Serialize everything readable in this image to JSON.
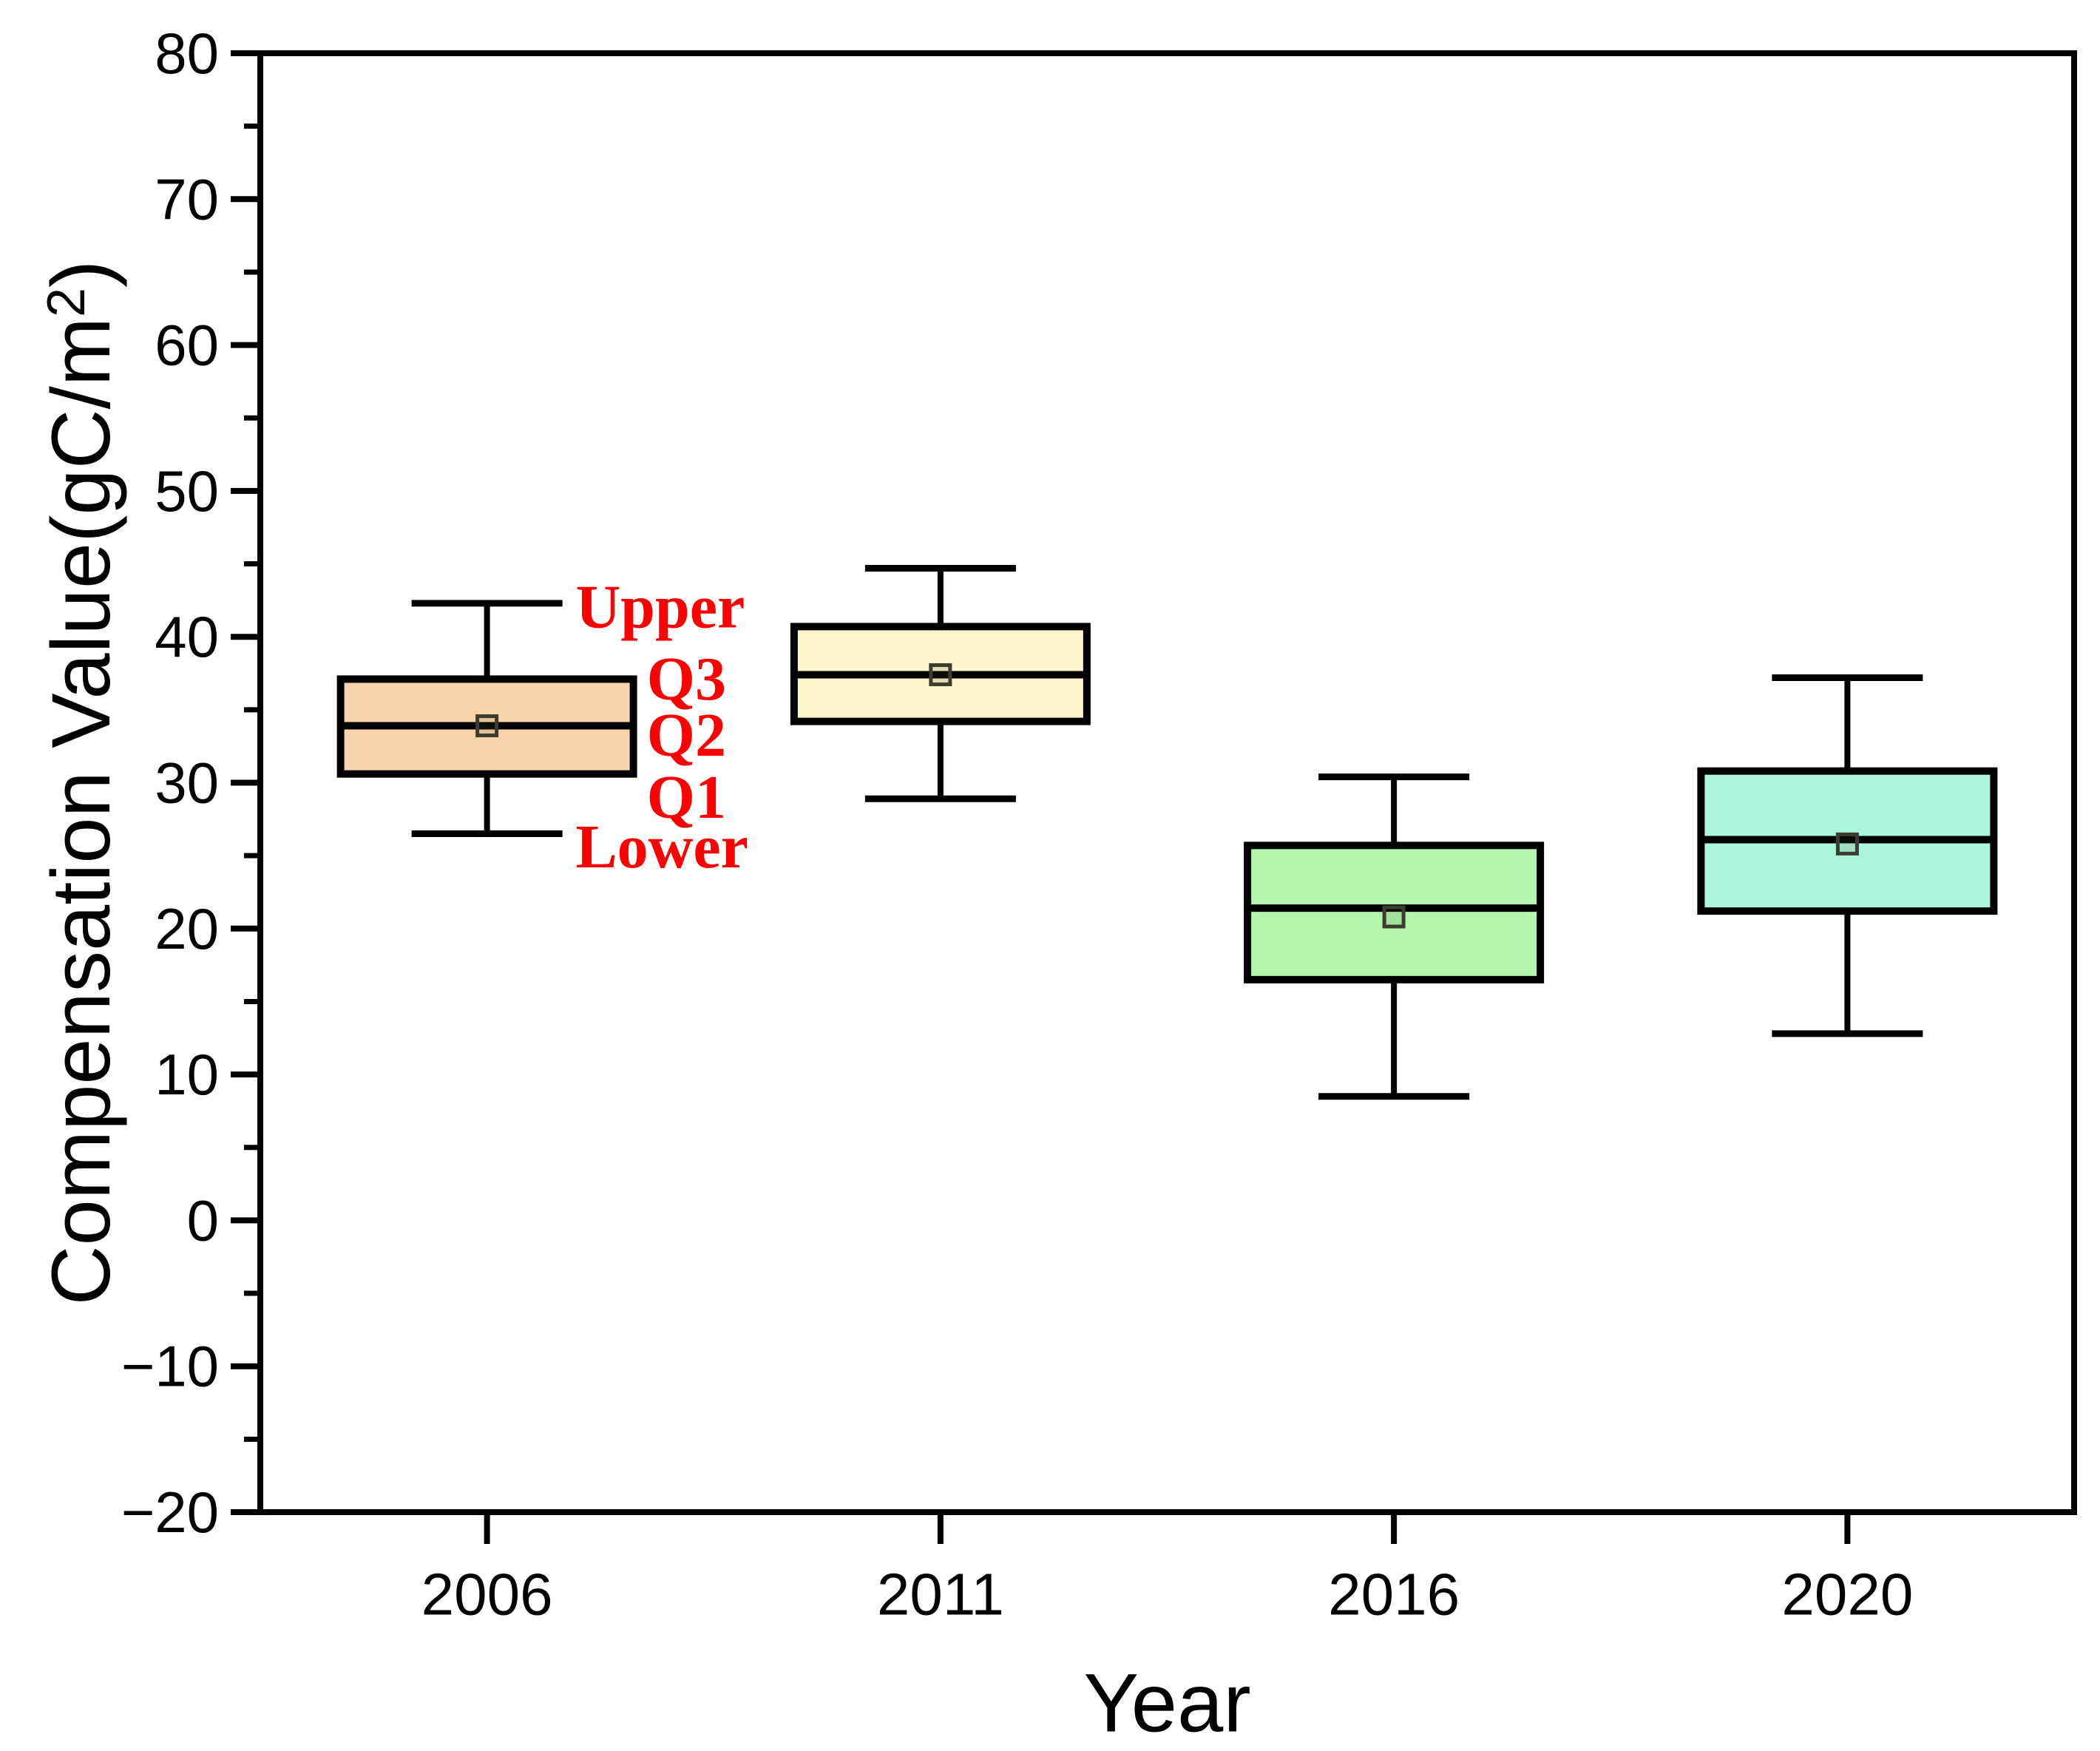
{
  "figure": {
    "background": "#ffffff",
    "frame_color": "#000000"
  },
  "chart_data": {
    "type": "box",
    "title": "",
    "xlabel": "Year",
    "ylabel": "Compensation Value(gC/m²)",
    "ylabel_parts": {
      "pre": "Compensation Value(gC/m",
      "sup": "2",
      "post": ")"
    },
    "categories": [
      "2006",
      "2011",
      "2016",
      "2020"
    ],
    "ylim": [
      -20,
      80
    ],
    "grid": "off",
    "legend": "none",
    "y_major_ticks": [
      {
        "v": 80,
        "label": "80"
      },
      {
        "v": 70,
        "label": "70"
      },
      {
        "v": 60,
        "label": "60"
      },
      {
        "v": 50,
        "label": "50"
      },
      {
        "v": 40,
        "label": "40"
      },
      {
        "v": 30,
        "label": "30"
      },
      {
        "v": 20,
        "label": "20"
      },
      {
        "v": 10,
        "label": "10"
      },
      {
        "v": 0,
        "label": "0"
      },
      {
        "v": -10,
        "label": "−10"
      },
      {
        "v": -20,
        "label": "−20"
      }
    ],
    "y_minor_ticks": [
      75,
      65,
      55,
      45,
      35,
      25,
      15,
      5,
      -5,
      -15
    ],
    "series": [
      {
        "category": "2006",
        "lower": 26.5,
        "q1": 30.6,
        "median": 33.9,
        "mean": 33.9,
        "q3": 37.1,
        "upper": 42.3,
        "fill_color": "#F9D5AC"
      },
      {
        "category": "2011",
        "lower": 28.9,
        "q1": 34.2,
        "median": 37.4,
        "mean": 37.4,
        "q3": 40.7,
        "upper": 44.7,
        "fill_color": "#FBF3C9"
      },
      {
        "category": "2016",
        "lower": 8.5,
        "q1": 16.5,
        "median": 21.4,
        "mean": 20.8,
        "q3": 25.7,
        "upper": 30.4,
        "fill_color": "#B3F7AF"
      },
      {
        "category": "2020",
        "lower": 12.8,
        "q1": 21.2,
        "median": 26.1,
        "mean": 25.8,
        "q3": 30.8,
        "upper": 37.2,
        "fill_color": "#ABF6DC"
      }
    ],
    "annotations": [
      {
        "text": "Upper",
        "box_index": 0,
        "anchor": "upper",
        "color": "#FF0000"
      },
      {
        "text": "Q3",
        "box_index": 0,
        "anchor": "q3",
        "color": "#FF0000"
      },
      {
        "text": "Q2",
        "box_index": 0,
        "anchor": "median",
        "color": "#FF0000"
      },
      {
        "text": "Q1",
        "box_index": 0,
        "anchor": "q1",
        "color": "#FF0000"
      },
      {
        "text": "Lower",
        "box_index": 0,
        "anchor": "lower",
        "color": "#FF0000"
      }
    ],
    "box_line_color": "#000000",
    "mean_marker": {
      "shape": "open-square",
      "edge_color": "#3C3C30"
    }
  }
}
